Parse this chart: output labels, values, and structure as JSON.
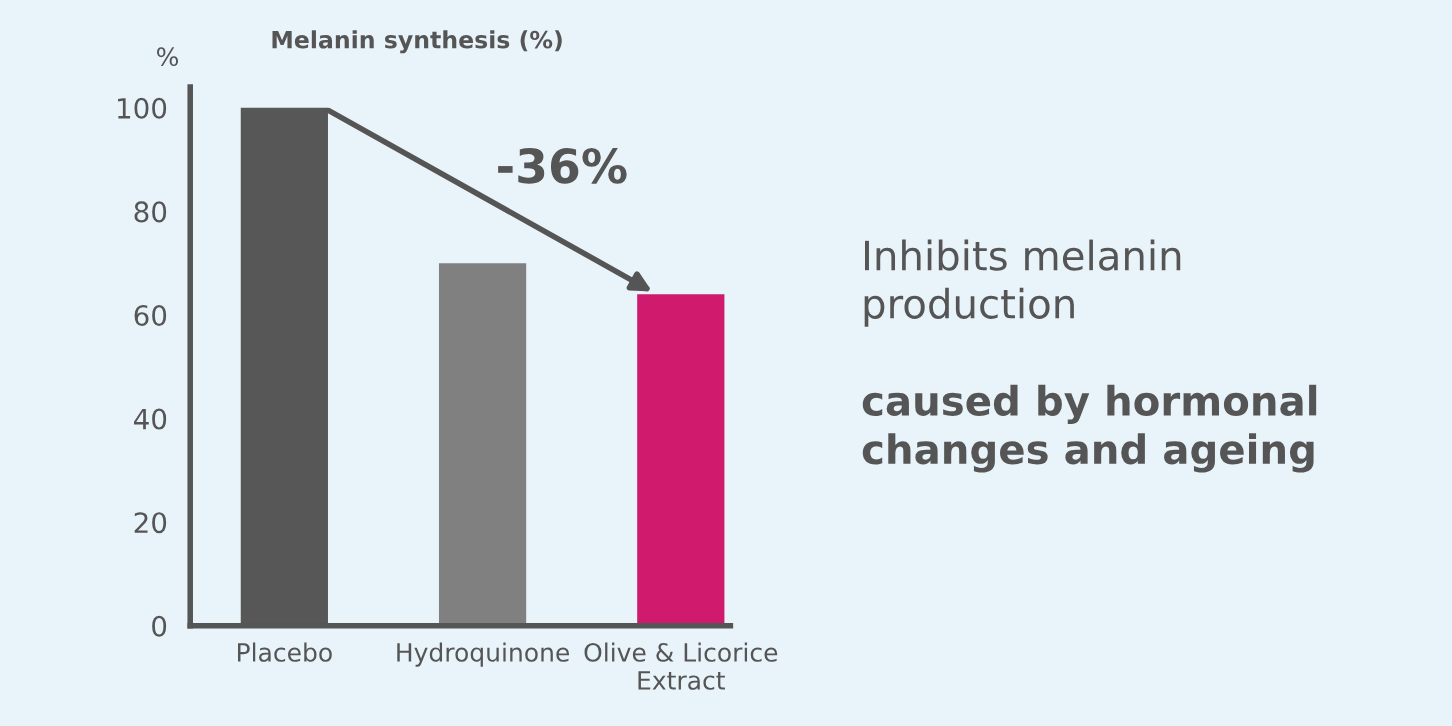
{
  "chart_data": {
    "type": "bar",
    "title": "Melanin synthesis (%)",
    "ylabel": "%",
    "categories": [
      "Placebo",
      "Hydroquinone",
      "Olive & Licorice\nExtract"
    ],
    "values": [
      100,
      70,
      64
    ],
    "colors": [
      "#575757",
      "#808080",
      "#cf1a6e"
    ],
    "ylim": [
      0,
      104
    ],
    "yticks": [
      0,
      20,
      40,
      60,
      80,
      100
    ],
    "grid": false,
    "legend": false,
    "annotations": [
      "-36%",
      "Inhibits melanin\nproduction",
      "caused by hormonal\nchanges and ageing"
    ]
  }
}
